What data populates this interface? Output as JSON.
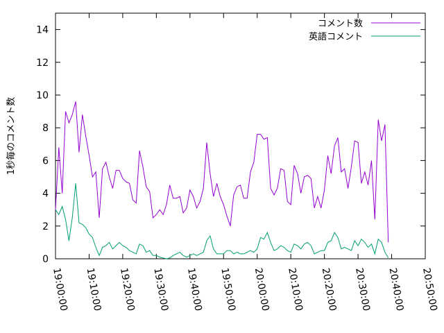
{
  "chart_data": {
    "type": "line",
    "ylabel": "1秒毎のコメント数",
    "ylim": [
      0,
      15
    ],
    "yticks": [
      0,
      2,
      4,
      6,
      8,
      10,
      12,
      14
    ],
    "xlim": [
      "19:00:00",
      "20:50:00"
    ],
    "xticks": [
      "19:00:00",
      "19:10:00",
      "19:20:00",
      "19:30:00",
      "19:40:00",
      "19:50:00",
      "20:00:00",
      "20:10:00",
      "20:20:00",
      "20:30:00",
      "20:40:00",
      "20:50:00"
    ],
    "grid": false,
    "legend_position": "top-right",
    "series": [
      {
        "name": "コメント数",
        "color": "#9400d3",
        "points": [
          [
            "19:00:00",
            3.0
          ],
          [
            "19:01:00",
            6.8
          ],
          [
            "19:02:00",
            4.0
          ],
          [
            "19:03:00",
            9.0
          ],
          [
            "19:04:00",
            8.3
          ],
          [
            "19:05:00",
            8.8
          ],
          [
            "19:06:00",
            9.6
          ],
          [
            "19:07:00",
            6.5
          ],
          [
            "19:08:00",
            8.8
          ],
          [
            "19:09:00",
            7.5
          ],
          [
            "19:10:00",
            6.3
          ],
          [
            "19:11:00",
            5.0
          ],
          [
            "19:12:00",
            5.3
          ],
          [
            "19:13:00",
            2.5
          ],
          [
            "19:14:00",
            5.5
          ],
          [
            "19:15:00",
            5.9
          ],
          [
            "19:16:00",
            5.0
          ],
          [
            "19:17:00",
            4.3
          ],
          [
            "19:18:00",
            5.4
          ],
          [
            "19:19:00",
            5.4
          ],
          [
            "19:20:00",
            4.9
          ],
          [
            "19:21:00",
            4.7
          ],
          [
            "19:22:00",
            4.6
          ],
          [
            "19:23:00",
            3.6
          ],
          [
            "19:24:00",
            3.4
          ],
          [
            "19:25:00",
            6.6
          ],
          [
            "19:26:00",
            5.6
          ],
          [
            "19:27:00",
            4.4
          ],
          [
            "19:28:00",
            4.1
          ],
          [
            "19:29:00",
            2.5
          ],
          [
            "19:30:00",
            2.7
          ],
          [
            "19:31:00",
            3.0
          ],
          [
            "19:32:00",
            2.7
          ],
          [
            "19:33:00",
            3.3
          ],
          [
            "19:34:00",
            4.5
          ],
          [
            "19:35:00",
            3.7
          ],
          [
            "19:36:00",
            3.7
          ],
          [
            "19:37:00",
            3.8
          ],
          [
            "19:38:00",
            2.8
          ],
          [
            "19:39:00",
            3.1
          ],
          [
            "19:40:00",
            4.2
          ],
          [
            "19:41:00",
            3.8
          ],
          [
            "19:42:00",
            3.1
          ],
          [
            "19:43:00",
            3.5
          ],
          [
            "19:44:00",
            4.3
          ],
          [
            "19:45:00",
            7.1
          ],
          [
            "19:46:00",
            5.2
          ],
          [
            "19:47:00",
            3.8
          ],
          [
            "19:48:00",
            4.6
          ],
          [
            "19:49:00",
            3.8
          ],
          [
            "19:50:00",
            3.3
          ],
          [
            "19:51:00",
            2.6
          ],
          [
            "19:52:00",
            2.0
          ],
          [
            "19:53:00",
            3.9
          ],
          [
            "19:54:00",
            4.4
          ],
          [
            "19:55:00",
            4.5
          ],
          [
            "19:56:00",
            3.7
          ],
          [
            "19:57:00",
            3.7
          ],
          [
            "19:58:00",
            5.3
          ],
          [
            "19:59:00",
            5.9
          ],
          [
            "20:00:00",
            7.6
          ],
          [
            "20:01:00",
            7.6
          ],
          [
            "20:02:00",
            7.3
          ],
          [
            "20:03:00",
            7.4
          ],
          [
            "20:04:00",
            4.3
          ],
          [
            "20:05:00",
            3.9
          ],
          [
            "20:06:00",
            4.3
          ],
          [
            "20:07:00",
            5.5
          ],
          [
            "20:08:00",
            5.4
          ],
          [
            "20:09:00",
            3.5
          ],
          [
            "20:10:00",
            3.3
          ],
          [
            "20:11:00",
            5.7
          ],
          [
            "20:12:00",
            5.2
          ],
          [
            "20:13:00",
            4.0
          ],
          [
            "20:14:00",
            5.0
          ],
          [
            "20:15:00",
            5.1
          ],
          [
            "20:16:00",
            4.9
          ],
          [
            "20:17:00",
            3.1
          ],
          [
            "20:18:00",
            3.8
          ],
          [
            "20:19:00",
            3.1
          ],
          [
            "20:20:00",
            4.2
          ],
          [
            "20:21:00",
            6.3
          ],
          [
            "20:22:00",
            5.2
          ],
          [
            "20:23:00",
            6.9
          ],
          [
            "20:24:00",
            7.4
          ],
          [
            "20:25:00",
            5.3
          ],
          [
            "20:26:00",
            5.5
          ],
          [
            "20:27:00",
            4.3
          ],
          [
            "20:28:00",
            5.6
          ],
          [
            "20:29:00",
            7.2
          ],
          [
            "20:30:00",
            7.1
          ],
          [
            "20:31:00",
            4.6
          ],
          [
            "20:32:00",
            5.3
          ],
          [
            "20:33:00",
            4.5
          ],
          [
            "20:34:00",
            6.0
          ],
          [
            "20:35:00",
            2.4
          ],
          [
            "20:36:00",
            8.5
          ],
          [
            "20:37:00",
            7.2
          ],
          [
            "20:38:00",
            8.2
          ],
          [
            "20:39:00",
            1.0
          ]
        ]
      },
      {
        "name": "英語コメント",
        "color": "#009e73",
        "points": [
          [
            "19:00:00",
            3.0
          ],
          [
            "19:01:00",
            2.7
          ],
          [
            "19:02:00",
            3.2
          ],
          [
            "19:03:00",
            2.4
          ],
          [
            "19:04:00",
            1.1
          ],
          [
            "19:05:00",
            2.5
          ],
          [
            "19:06:00",
            4.6
          ],
          [
            "19:07:00",
            2.2
          ],
          [
            "19:08:00",
            2.1
          ],
          [
            "19:09:00",
            1.9
          ],
          [
            "19:10:00",
            1.5
          ],
          [
            "19:11:00",
            1.3
          ],
          [
            "19:12:00",
            0.7
          ],
          [
            "19:13:00",
            0.2
          ],
          [
            "19:14:00",
            0.7
          ],
          [
            "19:15:00",
            0.8
          ],
          [
            "19:16:00",
            1.0
          ],
          [
            "19:17:00",
            0.6
          ],
          [
            "19:18:00",
            0.8
          ],
          [
            "19:19:00",
            1.0
          ],
          [
            "19:20:00",
            0.8
          ],
          [
            "19:21:00",
            0.7
          ],
          [
            "19:22:00",
            0.5
          ],
          [
            "19:23:00",
            0.4
          ],
          [
            "19:24:00",
            0.3
          ],
          [
            "19:25:00",
            0.9
          ],
          [
            "19:26:00",
            0.8
          ],
          [
            "19:27:00",
            0.4
          ],
          [
            "19:28:00",
            0.5
          ],
          [
            "19:29:00",
            0.2
          ],
          [
            "19:30:00",
            0.2
          ],
          [
            "19:31:00",
            0.1
          ],
          [
            "19:32:00",
            0.05
          ],
          [
            "19:33:00",
            0.0
          ],
          [
            "19:34:00",
            0.05
          ],
          [
            "19:35:00",
            0.2
          ],
          [
            "19:36:00",
            0.3
          ],
          [
            "19:37:00",
            0.4
          ],
          [
            "19:38:00",
            0.2
          ],
          [
            "19:39:00",
            0.1
          ],
          [
            "19:40:00",
            0.2
          ],
          [
            "19:41:00",
            0.3
          ],
          [
            "19:42:00",
            0.2
          ],
          [
            "19:43:00",
            0.3
          ],
          [
            "19:44:00",
            0.4
          ],
          [
            "19:45:00",
            1.1
          ],
          [
            "19:46:00",
            1.4
          ],
          [
            "19:47:00",
            0.6
          ],
          [
            "19:48:00",
            0.3
          ],
          [
            "19:49:00",
            0.3
          ],
          [
            "19:50:00",
            0.3
          ],
          [
            "19:51:00",
            0.5
          ],
          [
            "19:52:00",
            0.5
          ],
          [
            "19:53:00",
            0.3
          ],
          [
            "19:54:00",
            0.4
          ],
          [
            "19:55:00",
            0.3
          ],
          [
            "19:56:00",
            0.3
          ],
          [
            "19:57:00",
            0.4
          ],
          [
            "19:58:00",
            0.5
          ],
          [
            "19:59:00",
            0.4
          ],
          [
            "20:00:00",
            0.6
          ],
          [
            "20:01:00",
            1.3
          ],
          [
            "20:02:00",
            1.2
          ],
          [
            "20:03:00",
            1.6
          ],
          [
            "20:04:00",
            1.0
          ],
          [
            "20:05:00",
            0.5
          ],
          [
            "20:06:00",
            0.6
          ],
          [
            "20:07:00",
            0.8
          ],
          [
            "20:08:00",
            0.7
          ],
          [
            "20:09:00",
            0.5
          ],
          [
            "20:10:00",
            0.4
          ],
          [
            "20:11:00",
            0.9
          ],
          [
            "20:12:00",
            0.8
          ],
          [
            "20:13:00",
            0.6
          ],
          [
            "20:14:00",
            0.9
          ],
          [
            "20:15:00",
            1.0
          ],
          [
            "20:16:00",
            0.8
          ],
          [
            "20:17:00",
            0.3
          ],
          [
            "20:18:00",
            0.4
          ],
          [
            "20:19:00",
            0.5
          ],
          [
            "20:20:00",
            0.5
          ],
          [
            "20:21:00",
            1.0
          ],
          [
            "20:22:00",
            1.1
          ],
          [
            "20:23:00",
            1.6
          ],
          [
            "20:24:00",
            1.3
          ],
          [
            "20:25:00",
            0.6
          ],
          [
            "20:26:00",
            0.7
          ],
          [
            "20:27:00",
            0.6
          ],
          [
            "20:28:00",
            0.5
          ],
          [
            "20:29:00",
            1.1
          ],
          [
            "20:30:00",
            0.8
          ],
          [
            "20:31:00",
            1.2
          ],
          [
            "20:32:00",
            1.0
          ],
          [
            "20:33:00",
            0.7
          ],
          [
            "20:34:00",
            0.9
          ],
          [
            "20:35:00",
            0.3
          ],
          [
            "20:36:00",
            1.2
          ],
          [
            "20:37:00",
            1.0
          ],
          [
            "20:38:00",
            0.4
          ],
          [
            "20:39:00",
            0.05
          ]
        ]
      }
    ]
  }
}
